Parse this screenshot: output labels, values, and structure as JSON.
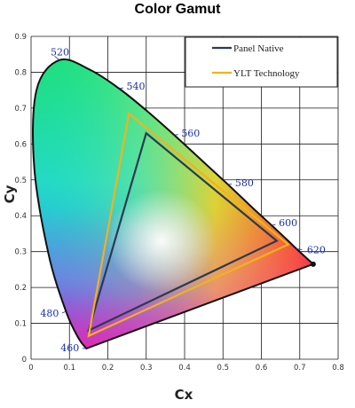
{
  "chart_data": {
    "type": "scatter",
    "title": "Color Gamut",
    "xlabel": "Cx",
    "ylabel": "Cy",
    "xlim": [
      0,
      0.8
    ],
    "ylim": [
      0,
      0.9
    ],
    "x_ticks": [
      "0",
      "0.1",
      "0.2",
      "0.3",
      "0.4",
      "0.5",
      "0.6",
      "0.7",
      "0.8"
    ],
    "y_ticks": [
      "0",
      "0.1",
      "0.2",
      "0.3",
      "0.4",
      "0.5",
      "0.6",
      "0.7",
      "0.8",
      "0.9"
    ],
    "grid": true,
    "legend_position": "top-right",
    "spectral_locus": [
      {
        "wl": "460",
        "x": 0.144,
        "y": 0.03
      },
      {
        "wl": "",
        "x": 0.124,
        "y": 0.058
      },
      {
        "wl": "480",
        "x": 0.091,
        "y": 0.133
      },
      {
        "wl": "",
        "x": 0.045,
        "y": 0.295
      },
      {
        "wl": "",
        "x": 0.008,
        "y": 0.538
      },
      {
        "wl": "",
        "x": 0.014,
        "y": 0.75
      },
      {
        "wl": "520",
        "x": 0.074,
        "y": 0.834
      },
      {
        "wl": "",
        "x": 0.155,
        "y": 0.806
      },
      {
        "wl": "540",
        "x": 0.23,
        "y": 0.754
      },
      {
        "wl": "",
        "x": 0.302,
        "y": 0.692
      },
      {
        "wl": "560",
        "x": 0.373,
        "y": 0.625
      },
      {
        "wl": "",
        "x": 0.444,
        "y": 0.555
      },
      {
        "wl": "580",
        "x": 0.513,
        "y": 0.487
      },
      {
        "wl": "",
        "x": 0.575,
        "y": 0.424
      },
      {
        "wl": "600",
        "x": 0.627,
        "y": 0.373
      },
      {
        "wl": "",
        "x": 0.666,
        "y": 0.334
      },
      {
        "wl": "620",
        "x": 0.691,
        "y": 0.308
      },
      {
        "wl": "",
        "x": 0.735,
        "y": 0.265
      }
    ],
    "series": [
      {
        "name": "Panel Native",
        "color": "#2b3a50",
        "points": [
          [
            0.64,
            0.33
          ],
          [
            0.3,
            0.63
          ],
          [
            0.15,
            0.08
          ]
        ]
      },
      {
        "name": "YLT Technology",
        "color": "#f2b21e",
        "points": [
          [
            0.67,
            0.32
          ],
          [
            0.255,
            0.685
          ],
          [
            0.15,
            0.065
          ]
        ]
      }
    ]
  }
}
